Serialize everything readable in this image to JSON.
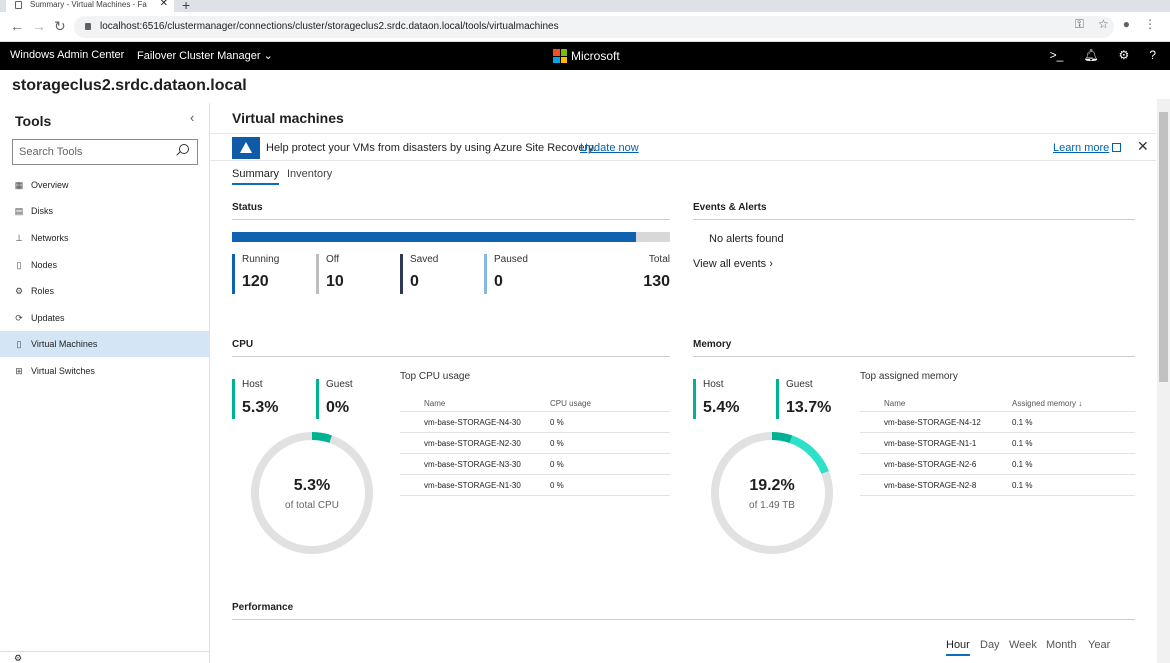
{
  "browser": {
    "tab_title": "Summary - Virtual Machines - Fa",
    "url": "localhost:6516/clustermanager/connections/cluster/storageclus2.srdc.dataon.local/tools/virtualmachines"
  },
  "header": {
    "app_name": "Windows Admin Center",
    "manager": "Failover Cluster Manager",
    "brand": "Microsoft",
    "colors": {
      "red": "#f25022",
      "green": "#7fba00",
      "blue": "#00a4ef",
      "yellow": "#ffb900"
    }
  },
  "server_title": "storageclus2.srdc.dataon.local",
  "sidebar": {
    "title": "Tools",
    "search_placeholder": "Search Tools",
    "items": [
      {
        "label": "Overview",
        "icon": "overview-icon",
        "active": false
      },
      {
        "label": "Disks",
        "icon": "disk-icon",
        "active": false
      },
      {
        "label": "Networks",
        "icon": "network-icon",
        "active": false
      },
      {
        "label": "Nodes",
        "icon": "node-icon",
        "active": false
      },
      {
        "label": "Roles",
        "icon": "roles-icon",
        "active": false
      },
      {
        "label": "Updates",
        "icon": "updates-icon",
        "active": false
      },
      {
        "label": "Virtual Machines",
        "icon": "vm-icon",
        "active": true
      },
      {
        "label": "Virtual Switches",
        "icon": "switch-icon",
        "active": false
      }
    ]
  },
  "main": {
    "title": "Virtual machines",
    "banner": {
      "message": "Help protect your VMs from disasters by using Azure Site Recovery.",
      "update_link": "Update now",
      "learn_more": "Learn more"
    },
    "tabs": [
      {
        "label": "Summary"
      },
      {
        "label": "Inventory"
      }
    ],
    "status": {
      "title": "Status",
      "running_fraction": 0.923,
      "items": [
        {
          "label": "Running",
          "value": "120",
          "color": "#0f62b0"
        },
        {
          "label": "Off",
          "value": "10",
          "color": "#bdbdbd"
        },
        {
          "label": "Saved",
          "value": "0",
          "color": "#2b3a55"
        },
        {
          "label": "Paused",
          "value": "0",
          "color": "#85b8e6"
        }
      ],
      "total_label": "Total",
      "total_value": "130"
    },
    "events": {
      "title": "Events & Alerts",
      "no_alerts": "No alerts found",
      "view_all": "View all events"
    },
    "cpu": {
      "title": "CPU",
      "host_label": "Host",
      "host_value": "5.3%",
      "guest_label": "Guest",
      "guest_value": "0%",
      "donut_value": "5.3%",
      "donut_sub": "of total CPU",
      "fraction": 0.053,
      "top_title": "Top CPU usage",
      "col_name": "Name",
      "col_value": "CPU usage",
      "rows": [
        {
          "name": "vm-base-STORAGE-N4-30",
          "value": "0 %"
        },
        {
          "name": "vm-base-STORAGE-N2-30",
          "value": "0 %"
        },
        {
          "name": "vm-base-STORAGE-N3-30",
          "value": "0 %"
        },
        {
          "name": "vm-base-STORAGE-N1-30",
          "value": "0 %"
        }
      ]
    },
    "memory": {
      "title": "Memory",
      "host_label": "Host",
      "host_value": "5.4%",
      "guest_label": "Guest",
      "guest_value": "13.7%",
      "donut_value": "19.2%",
      "donut_sub": "of 1.49 TB",
      "host_fraction": 0.054,
      "guest_fraction": 0.137,
      "top_title": "Top assigned memory",
      "col_name": "Name",
      "col_value": "Assigned memory",
      "rows": [
        {
          "name": "vm-base-STORAGE-N4-12",
          "value": "0.1 %"
        },
        {
          "name": "vm-base-STORAGE-N1-1",
          "value": "0.1 %"
        },
        {
          "name": "vm-base-STORAGE-N2-6",
          "value": "0.1 %"
        },
        {
          "name": "vm-base-STORAGE-N2-8",
          "value": "0.1 %"
        }
      ]
    },
    "performance": {
      "title": "Performance",
      "periods": [
        "Hour",
        "Day",
        "Week",
        "Month",
        "Year"
      ],
      "selected": "Hour"
    }
  }
}
